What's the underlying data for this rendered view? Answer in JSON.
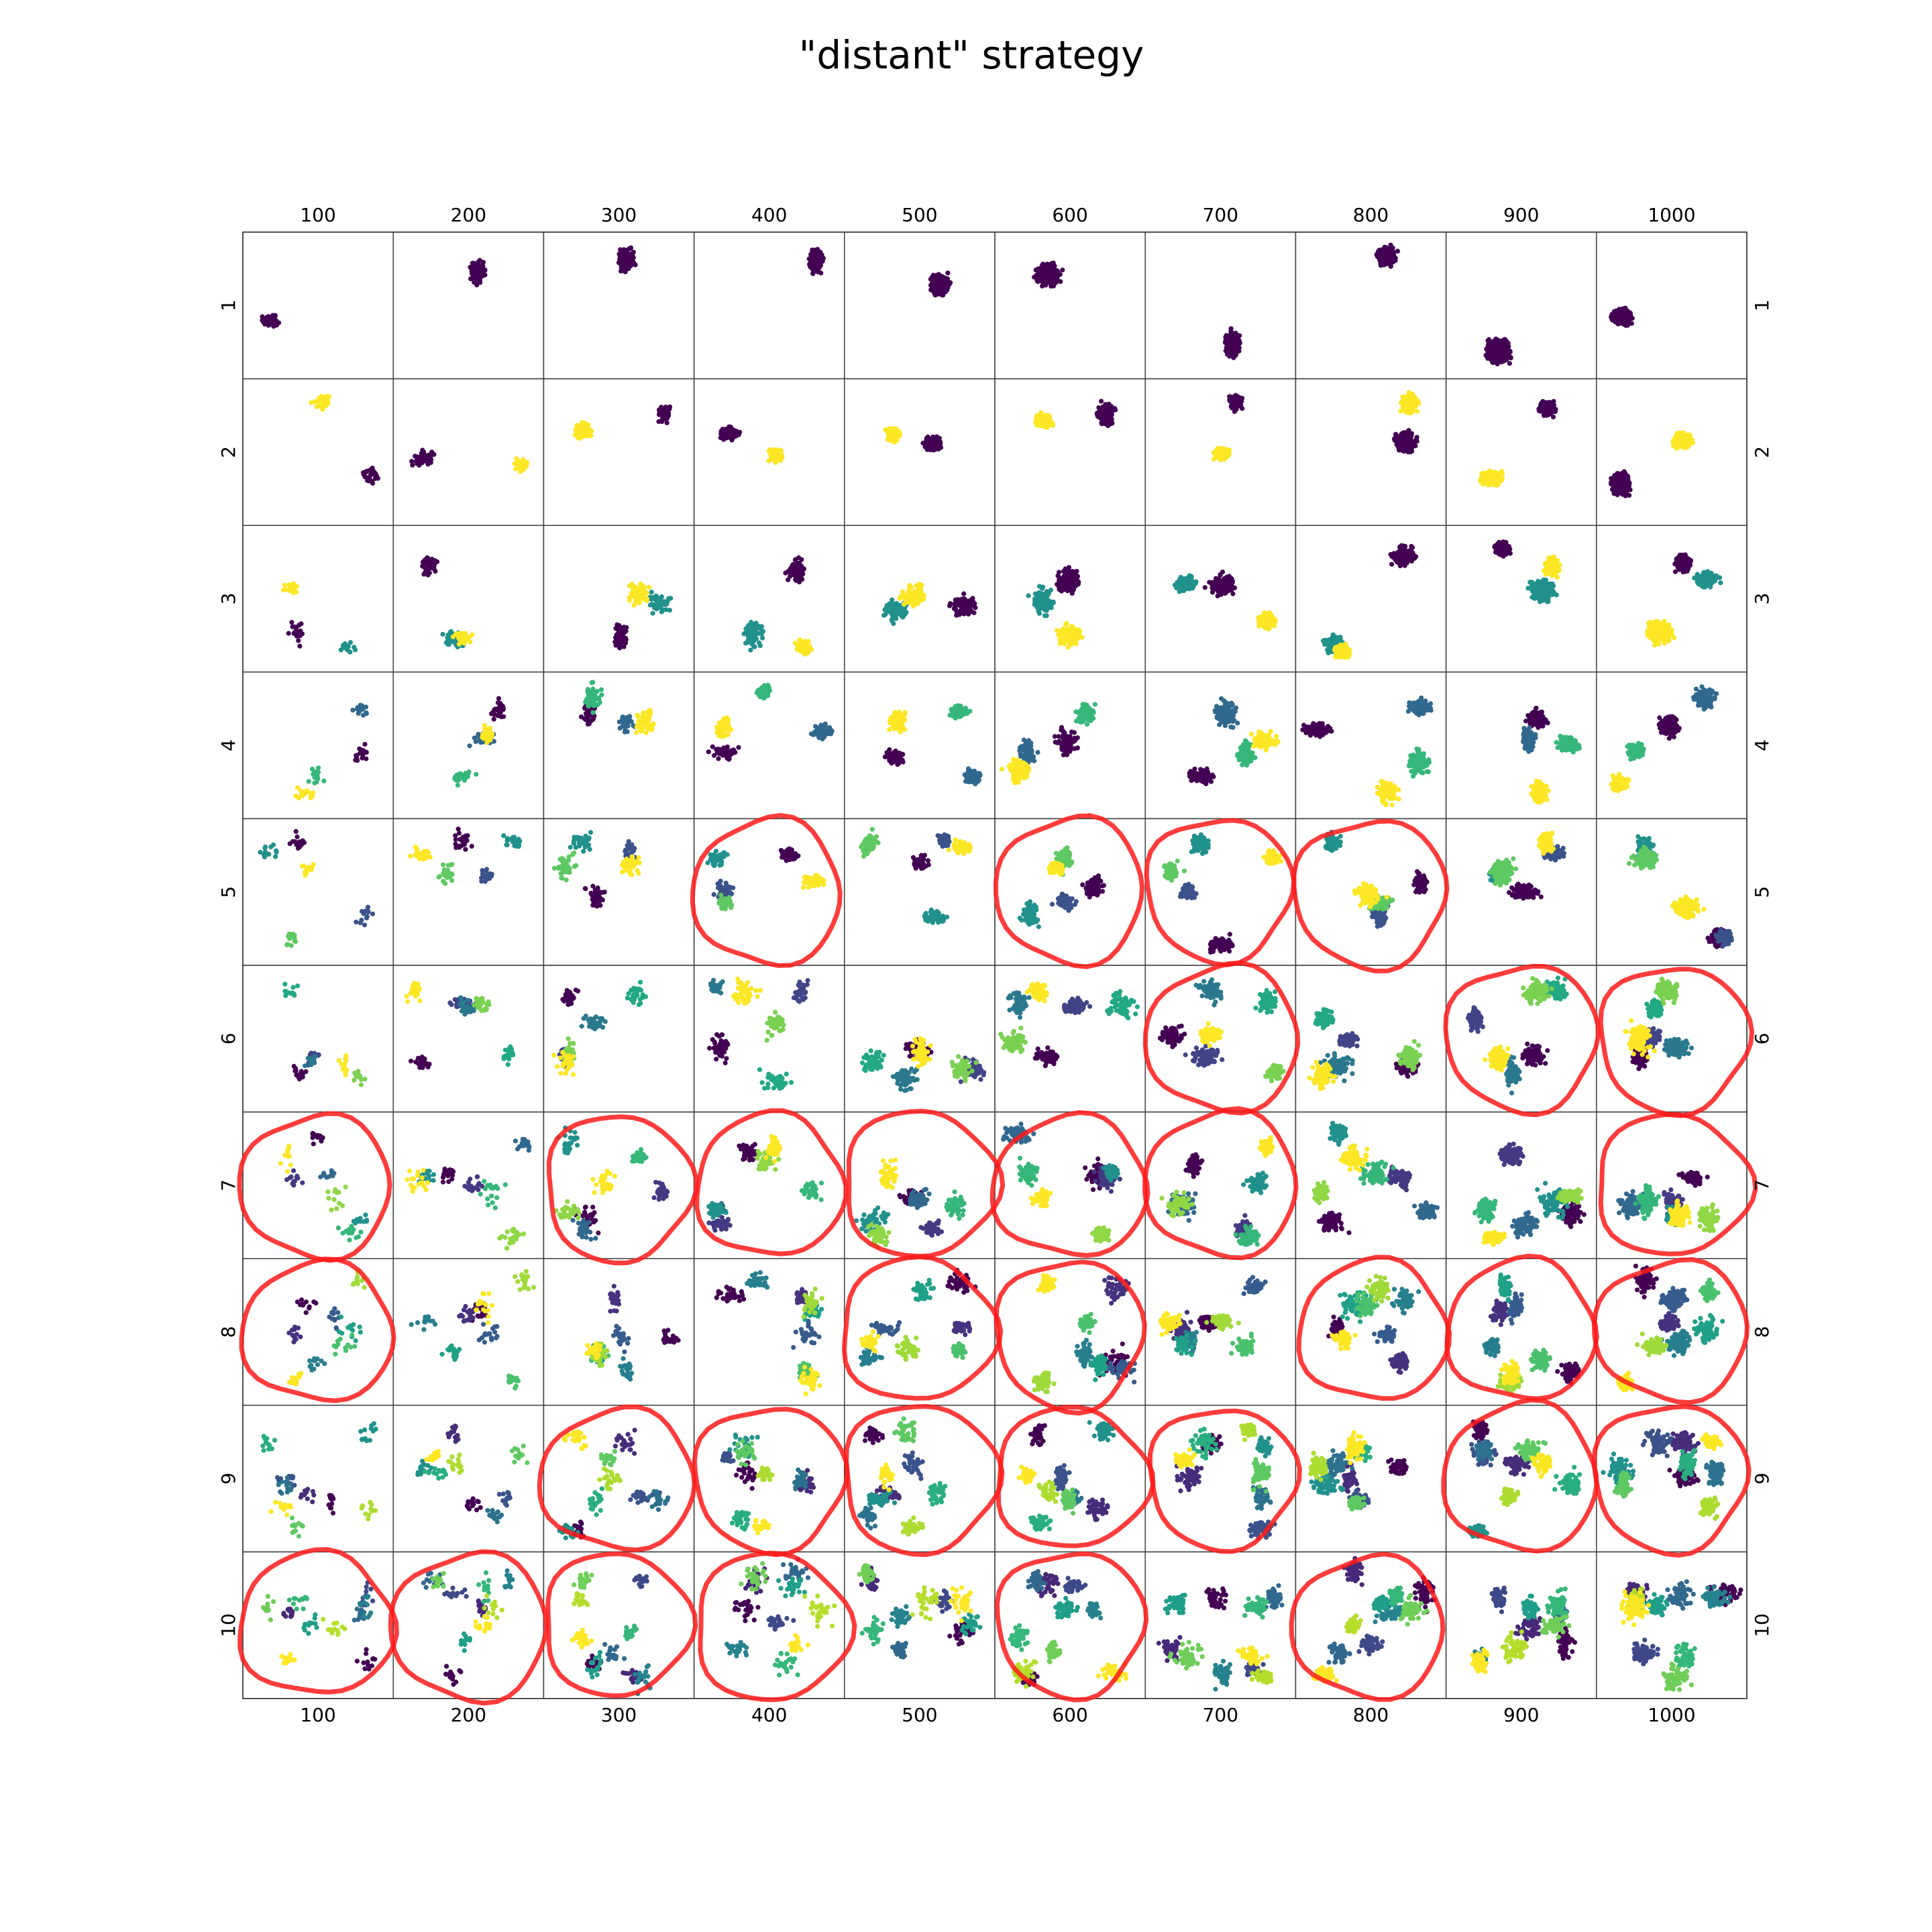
{
  "chart_data": {
    "type": "scatter",
    "title": "\"distant\" strategy",
    "layout": "grid of small-multiple scatter subplots; rows = number of clusters (k), columns = number of points (n)",
    "column_labels": [
      "100",
      "200",
      "300",
      "400",
      "500",
      "600",
      "700",
      "800",
      "900",
      "1000"
    ],
    "row_labels": [
      "1",
      "2",
      "3",
      "4",
      "5",
      "6",
      "7",
      "8",
      "9",
      "10"
    ],
    "column_values": [
      100,
      200,
      300,
      400,
      500,
      600,
      700,
      800,
      900,
      1000
    ],
    "row_values": [
      1,
      2,
      3,
      4,
      5,
      6,
      7,
      8,
      9,
      10
    ],
    "xlabel": "",
    "ylabel": "",
    "colormap": "viridis",
    "cluster_colors": {
      "1": [
        "#440154"
      ],
      "2": [
        "#440154",
        "#fde725"
      ],
      "3": [
        "#440154",
        "#21918c",
        "#fde725"
      ],
      "4": [
        "#440154",
        "#31688e",
        "#35b779",
        "#fde725"
      ],
      "5": [
        "#440154",
        "#3b528b",
        "#21918c",
        "#5ec962",
        "#fde725"
      ],
      "6": [
        "#440154",
        "#414487",
        "#2a788e",
        "#22a884",
        "#7ad151",
        "#fde725"
      ],
      "7": [
        "#440154",
        "#443983",
        "#31688e",
        "#21918c",
        "#35b779",
        "#8fd744",
        "#fde725"
      ],
      "8": [
        "#440154",
        "#46327e",
        "#365c8d",
        "#277f8e",
        "#1fa187",
        "#4ac16d",
        "#a0da39",
        "#fde725"
      ],
      "9": [
        "#440154",
        "#472d7b",
        "#3b528b",
        "#2c728e",
        "#21918c",
        "#28ae80",
        "#5ec962",
        "#addc30",
        "#fde725"
      ],
      "10": [
        "#440154",
        "#482878",
        "#3e4989",
        "#31688e",
        "#26828e",
        "#1f9e89",
        "#35b779",
        "#6ece58",
        "#b5de2b",
        "#fde725"
      ]
    },
    "annotation_color": "#ff1a1a",
    "circled_subplots": [
      {
        "row": "5",
        "col": "400"
      },
      {
        "row": "5",
        "col": "600"
      },
      {
        "row": "5",
        "col": "700"
      },
      {
        "row": "5",
        "col": "800"
      },
      {
        "row": "6",
        "col": "700"
      },
      {
        "row": "6",
        "col": "900"
      },
      {
        "row": "6",
        "col": "1000"
      },
      {
        "row": "7",
        "col": "100"
      },
      {
        "row": "7",
        "col": "300"
      },
      {
        "row": "7",
        "col": "400"
      },
      {
        "row": "7",
        "col": "500"
      },
      {
        "row": "7",
        "col": "600"
      },
      {
        "row": "7",
        "col": "700"
      },
      {
        "row": "7",
        "col": "1000"
      },
      {
        "row": "8",
        "col": "100"
      },
      {
        "row": "8",
        "col": "500"
      },
      {
        "row": "8",
        "col": "600"
      },
      {
        "row": "8",
        "col": "800"
      },
      {
        "row": "8",
        "col": "900"
      },
      {
        "row": "8",
        "col": "1000"
      },
      {
        "row": "9",
        "col": "300"
      },
      {
        "row": "9",
        "col": "400"
      },
      {
        "row": "9",
        "col": "500"
      },
      {
        "row": "9",
        "col": "600"
      },
      {
        "row": "9",
        "col": "700"
      },
      {
        "row": "9",
        "col": "900"
      },
      {
        "row": "9",
        "col": "1000"
      },
      {
        "row": "10",
        "col": "100"
      },
      {
        "row": "10",
        "col": "200"
      },
      {
        "row": "10",
        "col": "300"
      },
      {
        "row": "10",
        "col": "400"
      },
      {
        "row": "10",
        "col": "600"
      },
      {
        "row": "10",
        "col": "800"
      }
    ],
    "grid": false,
    "legend": "none"
  }
}
